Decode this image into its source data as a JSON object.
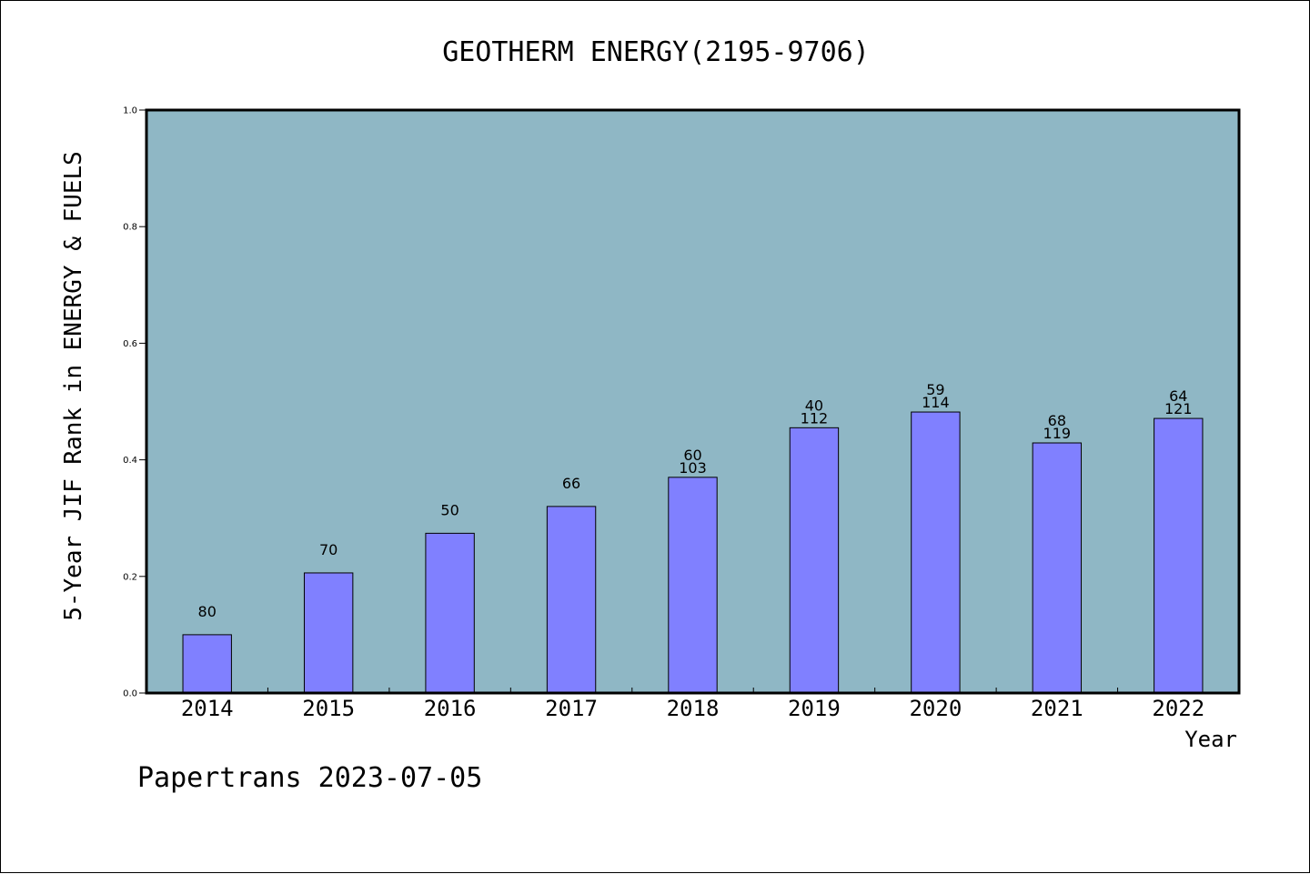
{
  "chart_data": {
    "type": "bar",
    "title": "GEOTHERM ENERGY(2195-9706)",
    "xlabel": "Year",
    "ylabel": "5-Year JIF Rank in ENERGY & FUELS",
    "categories": [
      "2014",
      "2015",
      "2016",
      "2017",
      "2018",
      "2019",
      "2020",
      "2021",
      "2022"
    ],
    "values": [
      0.1,
      0.206,
      0.274,
      0.32,
      0.37,
      0.455,
      0.482,
      0.429,
      0.471
    ],
    "rank_labels": [
      "80",
      "70",
      "50",
      "66",
      "60",
      "40",
      "59",
      "68",
      "64"
    ],
    "total_labels": [
      "",
      "",
      "",
      "",
      "103",
      "112",
      "114",
      "119",
      "121"
    ],
    "ylim": [
      0.0,
      1.0
    ],
    "yticks": [
      "0.0",
      "0.2",
      "0.4",
      "0.6",
      "0.8",
      "1.0"
    ],
    "grid": false,
    "colors": {
      "plot_bg": "#8fb7c5",
      "bar": "#8080ff",
      "bar_edge": "#000000"
    }
  },
  "footer": "Papertrans 2023-07-05"
}
